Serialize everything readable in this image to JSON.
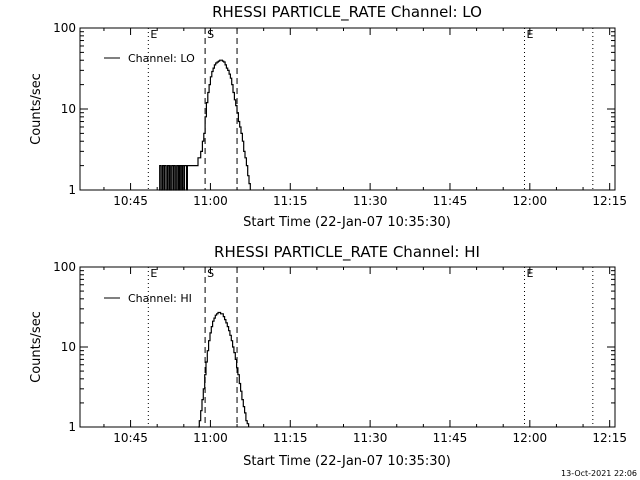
{
  "timestamp": "13-Oct-2021 22:06",
  "chart_data": [
    {
      "type": "line",
      "title": "RHESSI PARTICLE_RATE Channel: LO",
      "xlabel": "Start Time (22-Jan-07 10:35:30)",
      "ylabel": "Counts/sec",
      "yscale": "log",
      "ylim": [
        1,
        100
      ],
      "xlim": [
        "10:35:30",
        "12:16:00"
      ],
      "x_ticks": [
        "10:45",
        "11:00",
        "11:15",
        "11:30",
        "11:45",
        "12:00",
        "12:15"
      ],
      "y_ticks": [
        "1",
        "10",
        "100"
      ],
      "legend": {
        "position": "top-left",
        "entries": [
          "Channel: LO"
        ]
      },
      "vlines": [
        {
          "time": "10:48:20",
          "style": "dotted",
          "label": "E"
        },
        {
          "time": "10:59:00",
          "style": "dashed",
          "label": "S"
        },
        {
          "time": "11:05:00",
          "style": "dashed",
          "label": ""
        },
        {
          "time": "11:59:00",
          "style": "dotted",
          "label": "E"
        },
        {
          "time": "12:11:50",
          "style": "dotted",
          "label": ""
        }
      ],
      "series": [
        {
          "name": "Channel: LO",
          "x": [
            "10:50:20",
            "10:50:28",
            "10:50:36",
            "10:50:44",
            "10:50:52",
            "10:51:00",
            "10:51:08",
            "10:51:16",
            "10:51:24",
            "10:51:32",
            "10:51:40",
            "10:51:48",
            "10:51:56",
            "10:52:04",
            "10:52:12",
            "10:52:20",
            "10:52:28",
            "10:52:36",
            "10:52:44",
            "10:52:52",
            "10:53:00",
            "10:53:08",
            "10:53:16",
            "10:53:24",
            "10:53:32",
            "10:53:40",
            "10:53:48",
            "10:53:56",
            "10:54:04",
            "10:54:12",
            "10:54:20",
            "10:54:28",
            "10:54:36",
            "10:54:44",
            "10:54:52",
            "10:55:00",
            "10:55:08",
            "10:55:16",
            "10:55:24",
            "10:55:32",
            "10:55:40",
            "10:55:48",
            "10:55:56",
            "10:56:04",
            "10:56:12",
            "10:56:20",
            "10:56:28",
            "10:56:36",
            "10:56:44",
            "10:56:52",
            "10:57:00",
            "10:57:10",
            "10:57:20",
            "10:57:30",
            "10:57:40",
            "10:57:50",
            "10:58:00",
            "10:58:10",
            "10:58:20",
            "10:58:30",
            "10:58:45",
            "10:59:00",
            "10:59:15",
            "10:59:30",
            "10:59:45",
            "11:00:00",
            "11:00:15",
            "11:00:30",
            "11:00:45",
            "11:01:00",
            "11:01:15",
            "11:01:30",
            "11:01:45",
            "11:02:00",
            "11:02:15",
            "11:02:30",
            "11:02:45",
            "11:03:00",
            "11:03:15",
            "11:03:30",
            "11:03:45",
            "11:04:00",
            "11:04:15",
            "11:04:30",
            "11:04:45",
            "11:05:00",
            "11:05:15",
            "11:05:30",
            "11:05:45",
            "11:06:00",
            "11:06:15",
            "11:06:30",
            "11:06:45",
            "11:07:00",
            "11:07:15",
            "11:07:30"
          ],
          "y": [
            1,
            2,
            2,
            1,
            1,
            2,
            2,
            1,
            2,
            2,
            1,
            1,
            2,
            2,
            1,
            2,
            1,
            1,
            2,
            2,
            1,
            2,
            2,
            1,
            1,
            2,
            2,
            1,
            2,
            1,
            2,
            2,
            1,
            2,
            2,
            1,
            2,
            2,
            2,
            1,
            2,
            2,
            2,
            2,
            2,
            2,
            2,
            2,
            2,
            2,
            2,
            2,
            2,
            2,
            2.5,
            2.5,
            2.5,
            3,
            3,
            4,
            5,
            8,
            12,
            16,
            20,
            25,
            29,
            32,
            35,
            37,
            38,
            39,
            40,
            40,
            39,
            38,
            35,
            32,
            30,
            27,
            24,
            20,
            16,
            13,
            11,
            9,
            7,
            6,
            5,
            4,
            3,
            2.5,
            2,
            1.5,
            1.2,
            1
          ]
        }
      ]
    },
    {
      "type": "line",
      "title": "RHESSI PARTICLE_RATE Channel: HI",
      "xlabel": "Start Time (22-Jan-07 10:35:30)",
      "ylabel": "Counts/sec",
      "yscale": "log",
      "ylim": [
        1,
        100
      ],
      "xlim": [
        "10:35:30",
        "12:16:00"
      ],
      "x_ticks": [
        "10:45",
        "11:00",
        "11:15",
        "11:30",
        "11:45",
        "12:00",
        "12:15"
      ],
      "y_ticks": [
        "1",
        "10",
        "100"
      ],
      "legend": {
        "position": "top-left",
        "entries": [
          "Channel: HI"
        ]
      },
      "vlines": [
        {
          "time": "10:48:20",
          "style": "dotted",
          "label": "E"
        },
        {
          "time": "10:59:00",
          "style": "dashed",
          "label": "S"
        },
        {
          "time": "11:05:00",
          "style": "dashed",
          "label": ""
        },
        {
          "time": "11:59:00",
          "style": "dotted",
          "label": "E"
        },
        {
          "time": "12:11:50",
          "style": "dotted",
          "label": ""
        }
      ],
      "series": [
        {
          "name": "Channel: HI",
          "x": [
            "10:57:40",
            "10:57:55",
            "10:58:10",
            "10:58:25",
            "10:58:40",
            "10:58:55",
            "10:59:10",
            "10:59:25",
            "10:59:40",
            "10:59:55",
            "11:00:10",
            "11:00:25",
            "11:00:40",
            "11:00:55",
            "11:01:10",
            "11:01:25",
            "11:01:40",
            "11:01:55",
            "11:02:10",
            "11:02:25",
            "11:02:40",
            "11:02:55",
            "11:03:10",
            "11:03:25",
            "11:03:40",
            "11:03:55",
            "11:04:10",
            "11:04:25",
            "11:04:40",
            "11:04:55",
            "11:05:10",
            "11:05:25",
            "11:05:40",
            "11:05:55",
            "11:06:10",
            "11:06:25",
            "11:06:40",
            "11:06:55",
            "11:07:10"
          ],
          "y": [
            1,
            1.2,
            1.6,
            2.2,
            3,
            4.5,
            6.5,
            9,
            12,
            15,
            18,
            21,
            23,
            25,
            26,
            27,
            27,
            26,
            26,
            24,
            22,
            20,
            18,
            16,
            14,
            12,
            10,
            8.5,
            7,
            5.5,
            4.5,
            3.5,
            2.8,
            2.2,
            1.8,
            1.5,
            1.2,
            1.1,
            1
          ]
        }
      ]
    }
  ]
}
